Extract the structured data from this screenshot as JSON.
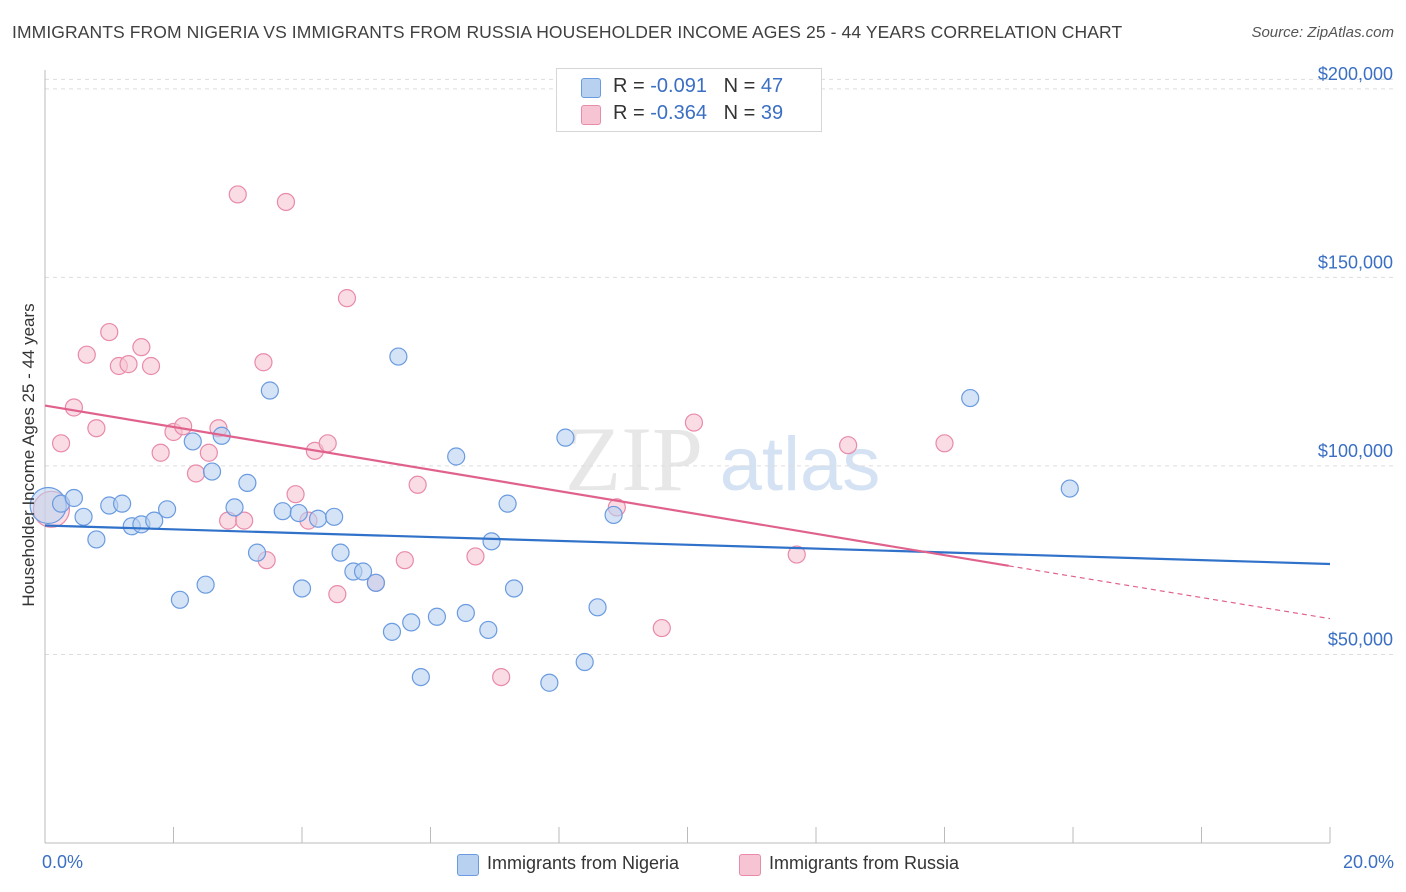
{
  "title": "IMMIGRANTS FROM NIGERIA VS IMMIGRANTS FROM RUSSIA HOUSEHOLDER INCOME AGES 25 - 44 YEARS CORRELATION CHART",
  "source": "Source: ZipAtlas.com",
  "watermark": {
    "zip": "ZIP",
    "atlas": "atlas"
  },
  "legend": {
    "nigeria": {
      "r_label": "R =",
      "r_value": "-0.091",
      "n_label": "N =",
      "n_value": "47"
    },
    "russia": {
      "r_label": "R =",
      "r_value": "-0.364",
      "n_label": "N =",
      "n_value": "39"
    }
  },
  "colors": {
    "nigeria_fill": "#b8d1f0",
    "nigeria_stroke": "#6a9be0",
    "nigeria_line": "#3071c9",
    "russia_fill": "#f7c4d4",
    "russia_stroke": "#e98aa9",
    "russia_line": "#e0628c",
    "axis_text": "#3a6fc4",
    "grid": "#dddddd"
  },
  "chart_data": {
    "type": "scatter",
    "title": "IMMIGRANTS FROM NIGERIA VS IMMIGRANTS FROM RUSSIA HOUSEHOLDER INCOME AGES 25 - 44 YEARS CORRELATION CHART",
    "xlabel": "",
    "ylabel": "Householder Income Ages 25 - 44 years",
    "xlim": [
      0,
      20
    ],
    "ylim": [
      0,
      205000
    ],
    "x_tick_labels": [
      "0.0%",
      "20.0%"
    ],
    "y_ticks": [
      50000,
      100000,
      150000,
      200000
    ],
    "y_tick_labels": [
      "$50,000",
      "$100,000",
      "$150,000",
      "$200,000"
    ],
    "grid": true,
    "legend_position": "top-center",
    "series": [
      {
        "name": "Immigrants from Nigeria",
        "r": -0.091,
        "n": 47,
        "trend": {
          "x": [
            0,
            20
          ],
          "y": [
            84200,
            74000
          ]
        },
        "points": [
          {
            "x": 0.05,
            "y": 89500,
            "big": true
          },
          {
            "x": 0.25,
            "y": 90000
          },
          {
            "x": 0.45,
            "y": 91500
          },
          {
            "x": 0.6,
            "y": 86500
          },
          {
            "x": 0.8,
            "y": 80500
          },
          {
            "x": 1.0,
            "y": 89500
          },
          {
            "x": 1.2,
            "y": 90000
          },
          {
            "x": 1.35,
            "y": 84000
          },
          {
            "x": 1.5,
            "y": 84500
          },
          {
            "x": 1.7,
            "y": 85500
          },
          {
            "x": 1.9,
            "y": 88500
          },
          {
            "x": 2.1,
            "y": 64500
          },
          {
            "x": 2.3,
            "y": 106500
          },
          {
            "x": 2.5,
            "y": 68500
          },
          {
            "x": 2.6,
            "y": 98500
          },
          {
            "x": 2.75,
            "y": 108000
          },
          {
            "x": 2.95,
            "y": 89000
          },
          {
            "x": 3.15,
            "y": 95500
          },
          {
            "x": 3.3,
            "y": 77000
          },
          {
            "x": 3.5,
            "y": 120000
          },
          {
            "x": 3.7,
            "y": 88000
          },
          {
            "x": 3.95,
            "y": 87500
          },
          {
            "x": 4.0,
            "y": 67500
          },
          {
            "x": 4.25,
            "y": 86000
          },
          {
            "x": 4.5,
            "y": 86500
          },
          {
            "x": 4.6,
            "y": 77000
          },
          {
            "x": 4.8,
            "y": 72000
          },
          {
            "x": 4.95,
            "y": 72000
          },
          {
            "x": 5.15,
            "y": 69000
          },
          {
            "x": 5.4,
            "y": 56000
          },
          {
            "x": 5.5,
            "y": 129000
          },
          {
            "x": 5.7,
            "y": 58500
          },
          {
            "x": 5.85,
            "y": 44000
          },
          {
            "x": 6.1,
            "y": 60000
          },
          {
            "x": 6.4,
            "y": 102500
          },
          {
            "x": 6.55,
            "y": 61000
          },
          {
            "x": 6.9,
            "y": 56500
          },
          {
            "x": 6.95,
            "y": 80000
          },
          {
            "x": 7.2,
            "y": 90000
          },
          {
            "x": 7.3,
            "y": 67500
          },
          {
            "x": 7.85,
            "y": 42500
          },
          {
            "x": 8.1,
            "y": 107500
          },
          {
            "x": 8.4,
            "y": 48000
          },
          {
            "x": 8.6,
            "y": 62500
          },
          {
            "x": 8.85,
            "y": 87000
          },
          {
            "x": 14.4,
            "y": 118000
          },
          {
            "x": 15.95,
            "y": 94000
          }
        ]
      },
      {
        "name": "Immigrants from Russia",
        "r": -0.364,
        "n": 39,
        "trend": {
          "x": [
            0,
            15
          ],
          "y": [
            116000,
            73500
          ]
        },
        "trend_dashed": {
          "x": [
            15,
            20
          ],
          "y": [
            73500,
            59500
          ]
        },
        "points": [
          {
            "x": 0.1,
            "y": 88500,
            "big": true
          },
          {
            "x": 0.25,
            "y": 106000
          },
          {
            "x": 0.45,
            "y": 115500
          },
          {
            "x": 0.65,
            "y": 129500
          },
          {
            "x": 0.8,
            "y": 110000
          },
          {
            "x": 1.0,
            "y": 135500
          },
          {
            "x": 1.15,
            "y": 126500
          },
          {
            "x": 1.3,
            "y": 127000
          },
          {
            "x": 1.5,
            "y": 131500
          },
          {
            "x": 1.65,
            "y": 126500
          },
          {
            "x": 1.8,
            "y": 103500
          },
          {
            "x": 2.0,
            "y": 109000
          },
          {
            "x": 2.15,
            "y": 110500
          },
          {
            "x": 2.35,
            "y": 98000
          },
          {
            "x": 2.55,
            "y": 103500
          },
          {
            "x": 2.7,
            "y": 110000
          },
          {
            "x": 2.85,
            "y": 85500
          },
          {
            "x": 3.0,
            "y": 172000
          },
          {
            "x": 3.1,
            "y": 85500
          },
          {
            "x": 3.4,
            "y": 127500
          },
          {
            "x": 3.45,
            "y": 75000
          },
          {
            "x": 3.75,
            "y": 170000
          },
          {
            "x": 3.9,
            "y": 92500
          },
          {
            "x": 4.1,
            "y": 85500
          },
          {
            "x": 4.2,
            "y": 104000
          },
          {
            "x": 4.4,
            "y": 106000
          },
          {
            "x": 4.55,
            "y": 66000
          },
          {
            "x": 4.7,
            "y": 144500
          },
          {
            "x": 5.15,
            "y": 69000
          },
          {
            "x": 5.6,
            "y": 75000
          },
          {
            "x": 5.8,
            "y": 95000
          },
          {
            "x": 6.7,
            "y": 76000
          },
          {
            "x": 7.1,
            "y": 44000
          },
          {
            "x": 8.9,
            "y": 89000
          },
          {
            "x": 9.6,
            "y": 57000
          },
          {
            "x": 10.1,
            "y": 111500
          },
          {
            "x": 11.7,
            "y": 76500
          },
          {
            "x": 12.5,
            "y": 105500
          },
          {
            "x": 14.0,
            "y": 106000
          }
        ]
      }
    ]
  },
  "bottom_legend": {
    "nigeria": "Immigrants from Nigeria",
    "russia": "Immigrants from Russia"
  }
}
